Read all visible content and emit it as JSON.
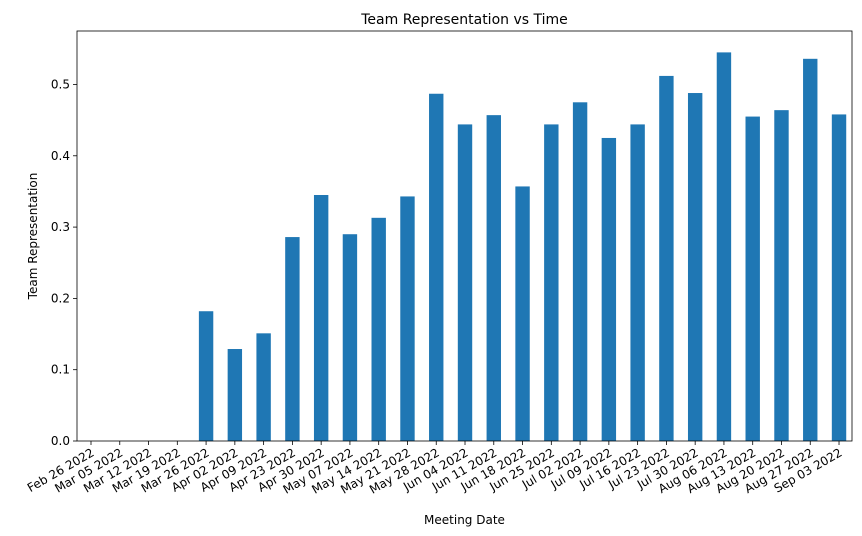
{
  "chart_data": {
    "type": "bar",
    "title": "Team Representation vs Time",
    "xlabel": "Meeting Date",
    "ylabel": "Team Representation",
    "ylim": [
      0,
      0.575
    ],
    "yticks": [
      0.0,
      0.1,
      0.2,
      0.3,
      0.4,
      0.5
    ],
    "ytick_labels": [
      "0.0",
      "0.1",
      "0.2",
      "0.3",
      "0.4",
      "0.5"
    ],
    "grid": false,
    "legend": "none",
    "bar_color": "#1f77b4",
    "categories": [
      "Feb 26 2022",
      "Mar 05 2022",
      "Mar 12 2022",
      "Mar 19 2022",
      "Mar 26 2022",
      "Apr 02 2022",
      "Apr 09 2022",
      "Apr 23 2022",
      "Apr 30 2022",
      "May 07 2022",
      "May 14 2022",
      "May 21 2022",
      "May 28 2022",
      "Jun 04 2022",
      "Jun 11 2022",
      "Jun 18 2022",
      "Jun 25 2022",
      "Jul 02 2022",
      "Jul 09 2022",
      "Jul 16 2022",
      "Jul 23 2022",
      "Jul 30 2022",
      "Aug 06 2022",
      "Aug 13 2022",
      "Aug 20 2022",
      "Aug 27 2022",
      "Sep 03 2022"
    ],
    "values": [
      0,
      0,
      0,
      0,
      0.182,
      0.129,
      0.151,
      0.286,
      0.345,
      0.29,
      0.313,
      0.343,
      0.487,
      0.444,
      0.457,
      0.357,
      0.444,
      0.475,
      0.425,
      0.444,
      0.512,
      0.488,
      0.545,
      0.455,
      0.464,
      0.536,
      0.458
    ]
  }
}
